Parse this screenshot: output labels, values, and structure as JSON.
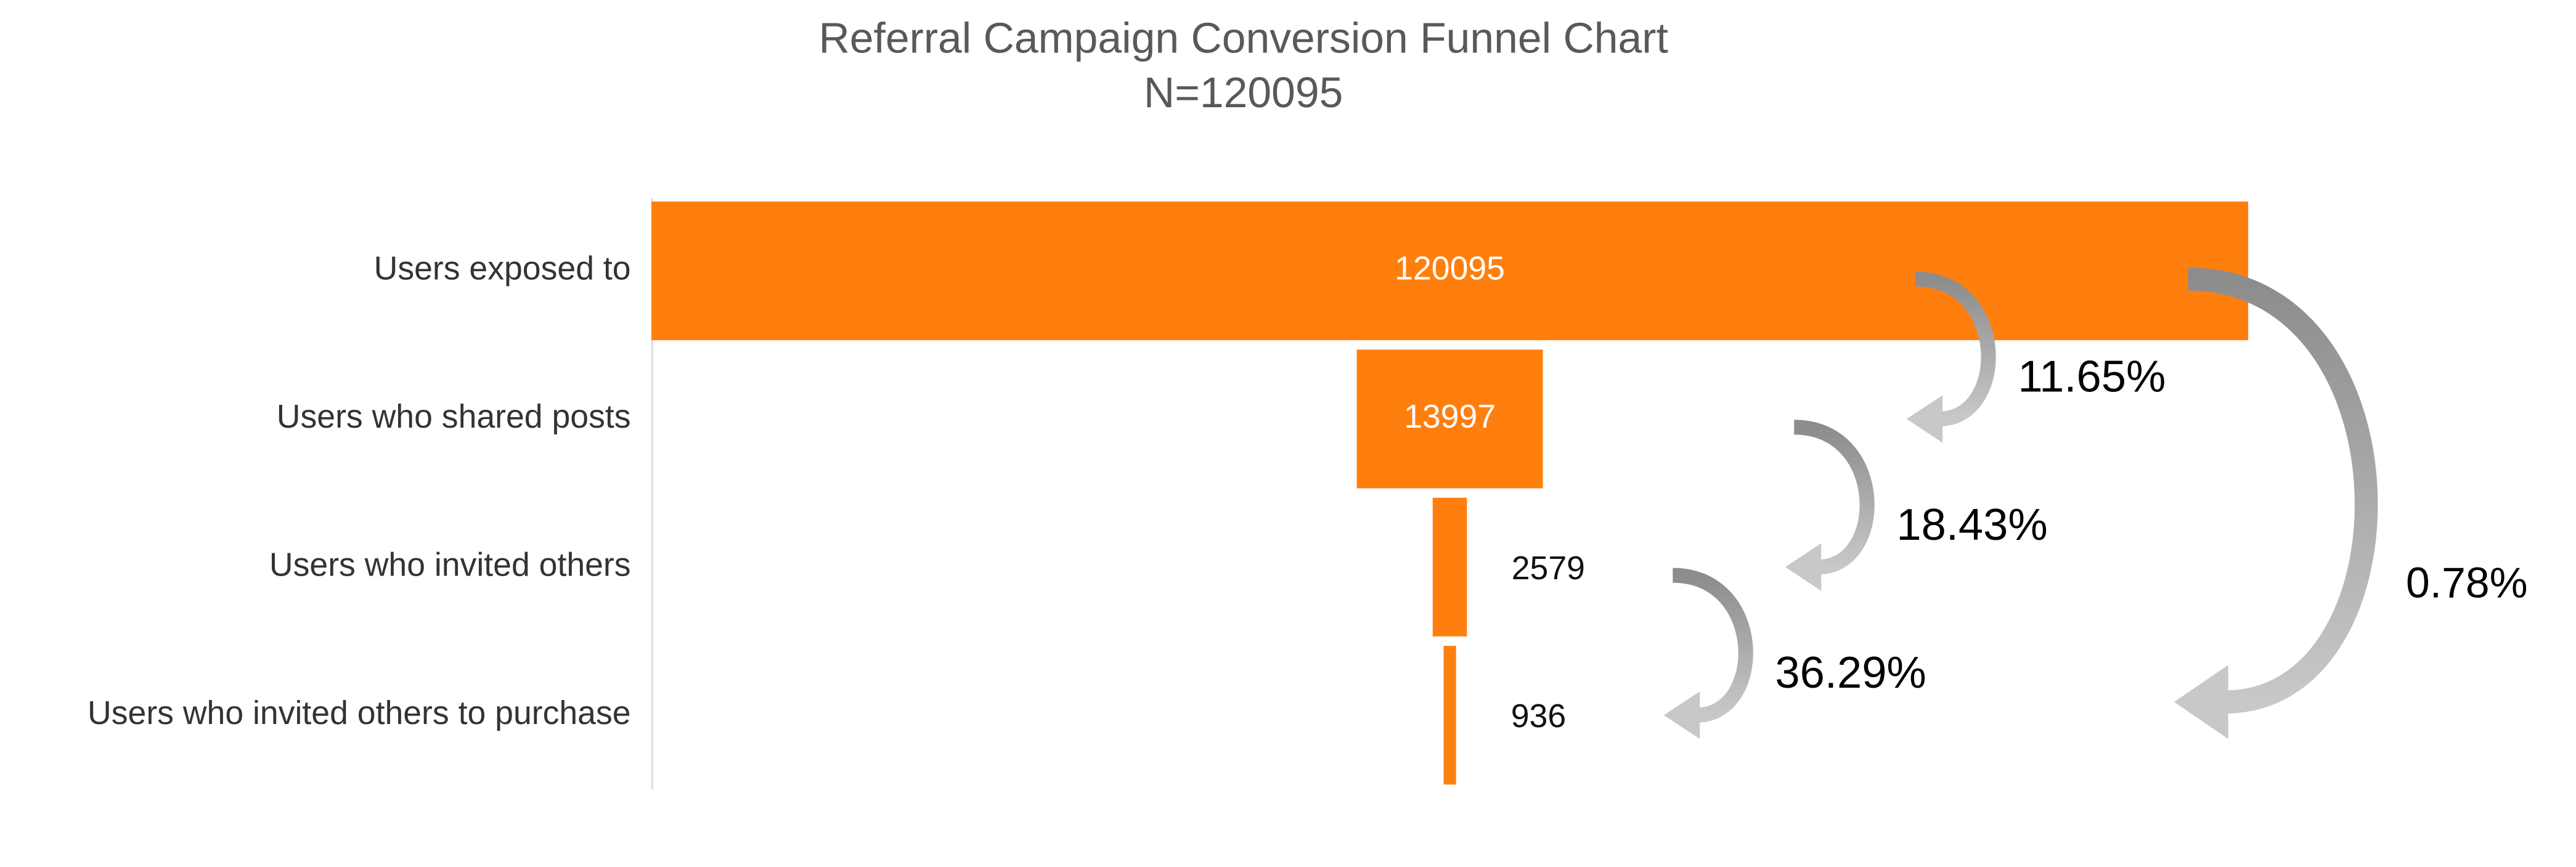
{
  "chart_data": {
    "type": "funnel",
    "title": "Referral Campaign Conversion Funnel Chart",
    "subtitle": "N=120095",
    "categories": [
      "Users exposed to",
      "Users who shared posts",
      "Users who invited others",
      "Users who invited others to purchase"
    ],
    "values": [
      120095,
      13997,
      2579,
      936
    ],
    "color": "#ff7f0e",
    "conversions": {
      "values": [
        11.65,
        18.43,
        36.29,
        0.78
      ],
      "value_labels": [
        "11.65%",
        "18.43%",
        "36.29%",
        "0.78%"
      ]
    }
  }
}
